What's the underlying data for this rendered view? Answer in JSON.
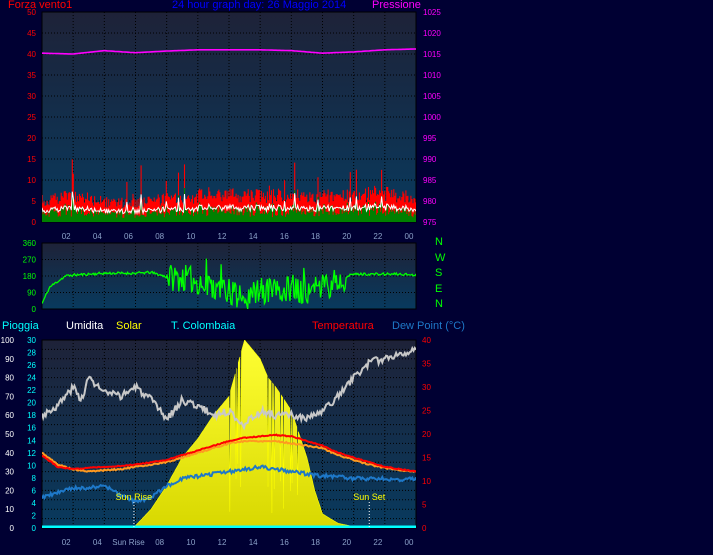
{
  "colors": {
    "background": "#000033",
    "panel_top": "#1e2238",
    "panel_bottom": "#083a5e",
    "wind_avg": "#ff0000",
    "wind_gust": "#008000",
    "wind_line": "#ffffff",
    "pressure": "#ff00ff",
    "direction": "#00ff00",
    "rain": "#00ffff",
    "humidity": "#c8c8c8",
    "solar": "#ffff00",
    "t_colombaia": "#ff9a20",
    "temperature": "#ff0000",
    "dew_point": "#1e78c8",
    "title": "#0000ff"
  },
  "header": {
    "left": "Forza vento1",
    "title": "24 hour graph day:  26 Maggio 2014",
    "right": "Pressione"
  },
  "legend": {
    "pioggia": "Pioggia",
    "umidita": "Umidita",
    "solar": "Solar",
    "t_colombaia": "T. Colombaia",
    "temperatura": "Temperatura",
    "dew_point": "Dew Point (°C)"
  },
  "direction_labels": [
    "N",
    "W",
    "S",
    "E",
    "N"
  ],
  "chart_data": [
    {
      "type": "line",
      "x_ticks": [
        "02",
        "04",
        "06",
        "08",
        "10",
        "12",
        "14",
        "16",
        "18",
        "20",
        "22",
        "00"
      ],
      "y_left_ticks": [
        "0",
        "5",
        "10",
        "15",
        "20",
        "25",
        "30",
        "35",
        "40",
        "45",
        "50"
      ],
      "y_right_ticks": [
        "975",
        "980",
        "985",
        "990",
        "995",
        "1000",
        "1005",
        "1010",
        "1015",
        "1020",
        "1025"
      ],
      "ylim_left": [
        0,
        50
      ],
      "ylim_right": [
        975,
        1025
      ],
      "series": [
        {
          "name": "Pressione",
          "x": [
            0,
            2,
            4,
            6,
            8,
            10,
            12,
            14,
            16,
            18,
            20,
            22,
            24
          ],
          "y": [
            1015.2,
            1015,
            1015.8,
            1015.3,
            1015.7,
            1016,
            1016,
            1016,
            1015.8,
            1015.2,
            1015.5,
            1016,
            1016.2
          ]
        },
        {
          "name": "Forza vento1",
          "x": [
            0,
            2,
            4,
            6,
            8,
            10,
            12,
            14,
            16,
            18,
            20,
            22,
            24
          ],
          "y": [
            6,
            8,
            6,
            6,
            7,
            8,
            8,
            8,
            8,
            8,
            8,
            9,
            7
          ]
        }
      ],
      "grid": true
    },
    {
      "type": "line",
      "x_ticks": [
        "02",
        "04",
        "06",
        "08",
        "10",
        "12",
        "14",
        "16",
        "18",
        "20",
        "22",
        "00"
      ],
      "y_ticks": [
        "0",
        "90",
        "180",
        "270",
        "360"
      ],
      "ylim": [
        0,
        360
      ],
      "series": [
        {
          "x": [
            0,
            0.5,
            1.5,
            2,
            4,
            5,
            6,
            7,
            8,
            9,
            10,
            11,
            12,
            13,
            14,
            15,
            16,
            17,
            18,
            19,
            20,
            21,
            22,
            23,
            24
          ],
          "y": [
            30,
            120,
            180,
            185,
            195,
            195,
            195,
            200,
            175,
            170,
            150,
            120,
            90,
            60,
            100,
            90,
            120,
            100,
            110,
            160,
            190,
            190,
            190,
            190,
            185
          ]
        }
      ],
      "grid": true
    },
    {
      "type": "line",
      "x_ticks": [
        "02",
        "04",
        "Sun Rise",
        "08",
        "10",
        "12",
        "14",
        "16",
        "18",
        "20",
        "22",
        "00"
      ],
      "y_ticks_rain": [
        "0",
        "2",
        "4",
        "6",
        "8",
        "10",
        "12",
        "14",
        "16",
        "18",
        "20",
        "22",
        "24",
        "26",
        "28",
        "30"
      ],
      "y_ticks_humidity": [
        "0",
        "10",
        "20",
        "30",
        "40",
        "50",
        "60",
        "70",
        "80",
        "90",
        "100"
      ],
      "y_ticks_temp": [
        "0",
        "5",
        "10",
        "15",
        "20",
        "25",
        "30",
        "35",
        "40"
      ],
      "ylim_humidity": [
        0,
        100
      ],
      "ylim_temp": [
        0,
        40
      ],
      "ylim_rain": [
        0,
        30
      ],
      "annotations": [
        {
          "text": "Sun Rise",
          "x": 5.9
        },
        {
          "text": "Sun Set",
          "x": 21.0
        }
      ],
      "series": [
        {
          "name": "Umidita",
          "x": [
            0,
            1,
            2,
            2.5,
            3,
            4,
            5,
            6,
            7,
            8,
            9,
            10,
            11,
            12,
            13,
            14,
            15,
            16,
            17,
            18,
            19,
            20,
            21,
            22,
            23,
            24
          ],
          "y": [
            60,
            65,
            75,
            68,
            80,
            72,
            70,
            75,
            68,
            58,
            68,
            65,
            60,
            62,
            55,
            62,
            60,
            60,
            58,
            62,
            70,
            80,
            88,
            90,
            93,
            95
          ]
        },
        {
          "name": "Temperatura",
          "x": [
            0,
            1,
            2,
            3,
            4,
            5,
            6,
            7,
            8,
            9,
            10,
            11,
            12,
            13,
            14,
            15,
            16,
            17,
            18,
            19,
            20,
            21,
            22,
            23,
            24
          ],
          "y": [
            15.5,
            13,
            12.5,
            12.8,
            13,
            13.2,
            13.5,
            14,
            14.5,
            15.5,
            16.5,
            17.5,
            18.5,
            19.2,
            19.5,
            19.8,
            19.5,
            18.5,
            17.5,
            16,
            15,
            14,
            13,
            12.5,
            12
          ]
        },
        {
          "name": "T. Colombaia",
          "x": [
            0,
            1,
            2,
            3,
            4,
            5,
            6,
            7,
            8,
            9,
            10,
            11,
            12,
            13,
            14,
            15,
            16,
            17,
            18,
            19,
            20,
            21,
            22,
            23,
            24
          ],
          "y": [
            16,
            13.5,
            12.5,
            12,
            12.3,
            12.5,
            13,
            13.5,
            14,
            15,
            16,
            17,
            18,
            18.5,
            18.5,
            18.5,
            18,
            17.5,
            17,
            15.5,
            14.5,
            13.5,
            12.8,
            12.3,
            12
          ]
        },
        {
          "name": "Dew Point (°C)",
          "x": [
            0,
            1,
            2,
            3,
            4,
            5,
            6,
            7,
            8,
            9,
            10,
            11,
            12,
            13,
            14,
            15,
            16,
            17,
            18,
            19,
            20,
            21,
            22,
            23,
            24
          ],
          "y": [
            6.5,
            7.5,
            8.5,
            8.5,
            9,
            7,
            5.5,
            6.5,
            9,
            10.5,
            11,
            11.5,
            12,
            12.5,
            13,
            12.5,
            12,
            11.5,
            11,
            11,
            10.5,
            10.5,
            10.5,
            10.2,
            10.5
          ]
        },
        {
          "name": "Solar",
          "x": [
            0,
            5.5,
            6,
            7,
            8,
            9,
            10,
            11,
            12,
            12.5,
            13,
            13.5,
            14,
            14.5,
            15,
            16,
            17,
            17.5,
            18,
            18.5,
            19,
            20,
            21,
            24
          ],
          "y": [
            0,
            0,
            0.5,
            4,
            9,
            15,
            19,
            24,
            28,
            34,
            40,
            38,
            36,
            32,
            30,
            25,
            15,
            8,
            3,
            2,
            1,
            0.3,
            0,
            0
          ]
        },
        {
          "name": "Pioggia",
          "x": [
            0,
            24
          ],
          "y": [
            0,
            0
          ]
        }
      ],
      "grid": true
    }
  ]
}
